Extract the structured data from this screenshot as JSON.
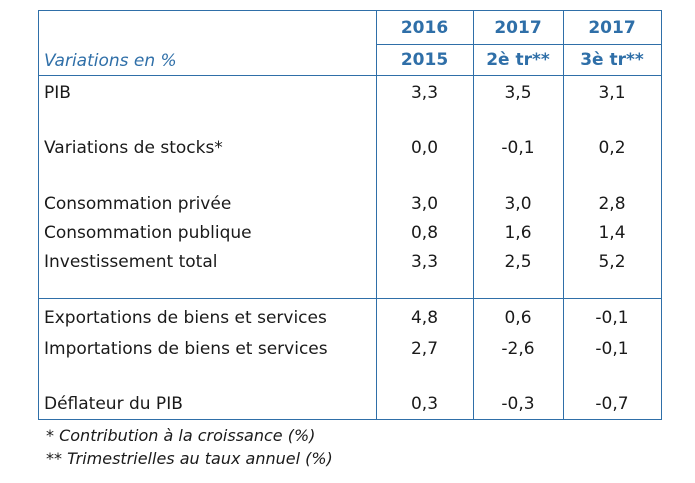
{
  "header": {
    "caption": "Variations en %",
    "col1_top": "2016",
    "col1_bottom": "2015",
    "col2_top": "2017",
    "col2_bottom": "2è tr**",
    "col3_top": "2017",
    "col3_bottom": "3è tr**"
  },
  "rows": [
    {
      "label": "PIB",
      "v1": "3,3",
      "v2": "3,5",
      "v3": "3,1"
    },
    {
      "label": "Variations de stocks*",
      "v1": "0,0",
      "v2": "-0,1",
      "v3": "0,2"
    },
    {
      "label": "Consommation privée",
      "v1": "3,0",
      "v2": "3,0",
      "v3": "2,8"
    },
    {
      "label": "Consommation publique",
      "v1": "0,8",
      "v2": "1,6",
      "v3": "1,4"
    },
    {
      "label": "Investissement total",
      "v1": "3,3",
      "v2": "2,5",
      "v3": "5,2"
    },
    {
      "label": "Exportations de biens et services",
      "v1": "4,8",
      "v2": "0,6",
      "v3": "-0,1"
    },
    {
      "label": "Importations de biens et services",
      "v1": "2,7",
      "v2": "-2,6",
      "v3": "-0,1"
    },
    {
      "label": "Déflateur du PIB",
      "v1": "0,3",
      "v2": "-0,3",
      "v3": "-0,7"
    }
  ],
  "footnotes": {
    "note1": "* Contribution à la croissance (%)",
    "note2": "** Trimestrielles au taux annuel  (%)"
  },
  "colors": {
    "accent": "#2f6fa8"
  }
}
